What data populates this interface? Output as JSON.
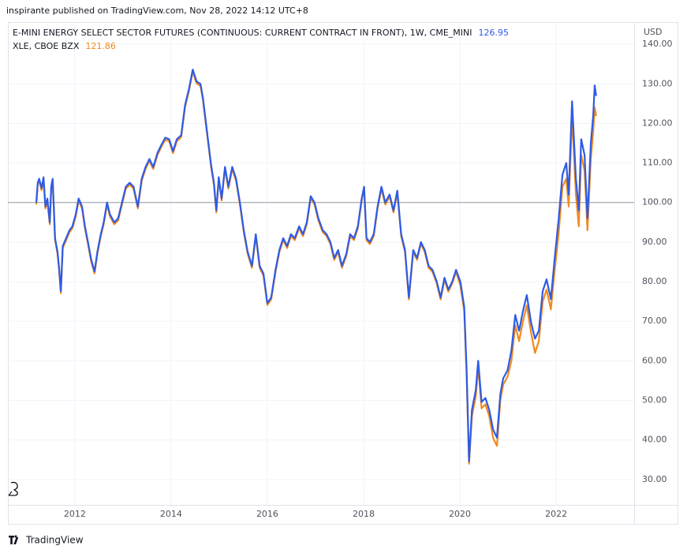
{
  "header": "inspirante published on TradingView.com, Nov 28, 2022 14:12 UTC+8",
  "footer": "TradingView",
  "chart_data": {
    "type": "line",
    "axis_label": "USD",
    "x": [
      2011.2,
      2011.23,
      2011.26,
      2011.31,
      2011.35,
      2011.39,
      2011.43,
      2011.48,
      2011.51,
      2011.54,
      2011.59,
      2011.64,
      2011.67,
      2011.71,
      2011.75,
      2011.82,
      2011.89,
      2011.95,
      2012.02,
      2012.08,
      2012.15,
      2012.21,
      2012.28,
      2012.34,
      2012.41,
      2012.47,
      2012.54,
      2012.6,
      2012.67,
      2012.73,
      2012.82,
      2012.9,
      2012.98,
      2013.06,
      2013.14,
      2013.22,
      2013.31,
      2013.39,
      2013.47,
      2013.55,
      2013.63,
      2013.72,
      2013.8,
      2013.88,
      2013.96,
      2014.04,
      2014.12,
      2014.21,
      2014.29,
      2014.37,
      2014.45,
      2014.53,
      2014.61,
      2014.66,
      2014.73,
      2014.78,
      2014.83,
      2014.89,
      2014.94,
      2014.99,
      2015.05,
      2015.12,
      2015.19,
      2015.27,
      2015.35,
      2015.43,
      2015.51,
      2015.59,
      2015.68,
      2015.76,
      2015.84,
      2015.92,
      2016.0,
      2016.08,
      2016.17,
      2016.25,
      2016.33,
      2016.41,
      2016.49,
      2016.57,
      2016.66,
      2016.74,
      2016.82,
      2016.9,
      2016.98,
      2017.06,
      2017.15,
      2017.23,
      2017.31,
      2017.39,
      2017.47,
      2017.55,
      2017.64,
      2017.72,
      2017.8,
      2017.88,
      2017.96,
      2018.01,
      2018.06,
      2018.13,
      2018.21,
      2018.29,
      2018.37,
      2018.45,
      2018.54,
      2018.62,
      2018.7,
      2018.78,
      2018.86,
      2018.94,
      2019.03,
      2019.11,
      2019.19,
      2019.27,
      2019.35,
      2019.43,
      2019.52,
      2019.6,
      2019.68,
      2019.76,
      2019.84,
      2019.92,
      2020.01,
      2020.09,
      2020.14,
      2020.19,
      2020.25,
      2020.33,
      2020.38,
      2020.45,
      2020.53,
      2020.61,
      2020.69,
      2020.77,
      2020.84,
      2020.9,
      2020.99,
      2021.07,
      2021.15,
      2021.23,
      2021.31,
      2021.39,
      2021.48,
      2021.56,
      2021.64,
      2021.72,
      2021.8,
      2021.89,
      2021.97,
      2022.05,
      2022.13,
      2022.21,
      2022.26,
      2022.33,
      2022.41,
      2022.47,
      2022.52,
      2022.59,
      2022.65,
      2022.72,
      2022.77,
      2022.8,
      2022.83
    ],
    "series": [
      {
        "name": "XLE, CBOE BZX",
        "color": "#f28a1a",
        "values": [
          99.5,
          104.5,
          105.5,
          103.1,
          105.9,
          98.5,
          100.5,
          94.5,
          103.5,
          105.5,
          90.5,
          87.1,
          83.5,
          77.1,
          88.5,
          90.5,
          92.5,
          93.5,
          96.5,
          100.5,
          98.5,
          93.5,
          89.1,
          85.1,
          82.1,
          87.1,
          91.5,
          94.5,
          99.5,
          96.5,
          94.5,
          95.5,
          99.5,
          103.5,
          104.5,
          103.5,
          98.5,
          105.5,
          108.5,
          110.5,
          108.5,
          112.1,
          114.1,
          115.9,
          115.5,
          112.5,
          115.5,
          116.5,
          124.1,
          128.1,
          133.1,
          130.1,
          129.5,
          126.1,
          119.1,
          114.1,
          109.1,
          104.5,
          97.5,
          105.9,
          100.5,
          108.5,
          103.5,
          108.5,
          105.5,
          99.5,
          92.5,
          87.1,
          83.5,
          91.5,
          83.5,
          81.5,
          74.1,
          75.5,
          82.5,
          87.5,
          90.5,
          88.5,
          91.5,
          90.5,
          93.5,
          91.5,
          94.5,
          101.1,
          99.5,
          95.5,
          92.5,
          91.5,
          89.5,
          85.5,
          87.5,
          83.5,
          86.5,
          91.5,
          90.5,
          93.5,
          100.5,
          103.5,
          90.5,
          89.5,
          91.5,
          98.5,
          103.5,
          99.5,
          101.5,
          97.5,
          102.5,
          91.5,
          87.5,
          75.5,
          87.5,
          85.5,
          89.5,
          87.5,
          83.5,
          82.5,
          79.5,
          75.5,
          80.5,
          77.5,
          79.5,
          82.5,
          79,
          72.6,
          56,
          34,
          46,
          51,
          58.5,
          48,
          49,
          46,
          40.5,
          38.5,
          50,
          54,
          56,
          60,
          69,
          65,
          70,
          74,
          67,
          62,
          65,
          75,
          78,
          73,
          83,
          92,
          104,
          106,
          99,
          122,
          102,
          94,
          112,
          108,
          93,
          111,
          118,
          124,
          121.86
        ]
      },
      {
        "name": "E-MINI ENERGY SELECT SECTOR FUTURES (CONTINUOUS: CURRENT CONTRACT IN FRONT), 1W, CME_MINI",
        "color": "#2e5be6",
        "values": [
          100,
          105,
          106,
          103.6,
          106.4,
          99,
          101,
          95,
          104,
          106,
          91,
          87.6,
          84,
          77.6,
          89,
          91,
          93,
          94,
          97,
          101,
          99,
          94,
          89.6,
          85.6,
          82.6,
          87.6,
          92,
          95,
          100,
          97,
          95,
          96,
          100,
          104,
          105,
          104,
          99,
          106,
          109,
          111,
          109,
          112.6,
          114.6,
          116.4,
          116,
          113,
          116,
          117,
          124.6,
          128.6,
          133.6,
          130.6,
          130,
          126.6,
          119.6,
          114.6,
          109.6,
          105,
          98,
          106.4,
          101,
          109,
          104,
          109,
          106,
          100,
          93,
          87.6,
          84,
          92,
          84,
          82,
          74.6,
          76,
          83,
          88,
          91,
          89,
          92,
          91,
          94,
          92,
          95,
          101.6,
          100,
          96,
          93,
          92,
          90,
          86,
          88,
          84,
          87,
          92,
          91,
          94,
          101,
          104,
          91,
          90,
          92,
          99,
          104,
          100,
          102,
          98,
          103,
          92,
          88,
          76,
          88,
          86,
          90,
          88,
          84,
          83,
          80,
          76,
          81,
          78,
          80,
          83,
          80,
          73.6,
          57.6,
          34.6,
          47.6,
          52.6,
          60,
          49.6,
          50.6,
          47.6,
          42.6,
          40.6,
          51.6,
          55.6,
          57.6,
          62.6,
          71.6,
          67.6,
          72.6,
          76.6,
          69.6,
          65.6,
          67.6,
          77.6,
          80.6,
          75.6,
          86,
          95.6,
          107,
          110,
          102,
          125.6,
          106,
          98,
          116,
          112,
          96,
          115,
          122,
          129.6,
          126.95
        ]
      }
    ],
    "legend_order": [
      1,
      0
    ],
    "xlim": [
      2010.61,
      2023.62
    ],
    "xticks": [
      2012,
      2014,
      2016,
      2018,
      2020,
      2022
    ],
    "ylim": [
      23.6,
      145.6
    ],
    "yticks": [
      {
        "value": 30,
        "label": "30.00"
      },
      {
        "value": 40,
        "label": "40.00"
      },
      {
        "value": 50,
        "label": "50.00"
      },
      {
        "value": 60,
        "label": "60.00"
      },
      {
        "value": 70,
        "label": "70.00"
      },
      {
        "value": 80,
        "label": "80.00"
      },
      {
        "value": 90,
        "label": "90.00"
      },
      {
        "value": 100,
        "label": "100.00"
      },
      {
        "value": 110,
        "label": "110.00"
      },
      {
        "value": 120,
        "label": "120.00"
      },
      {
        "value": 130,
        "label": "130.00"
      },
      {
        "value": 140,
        "label": "140.00"
      }
    ],
    "baseline": 100,
    "grid": true
  }
}
